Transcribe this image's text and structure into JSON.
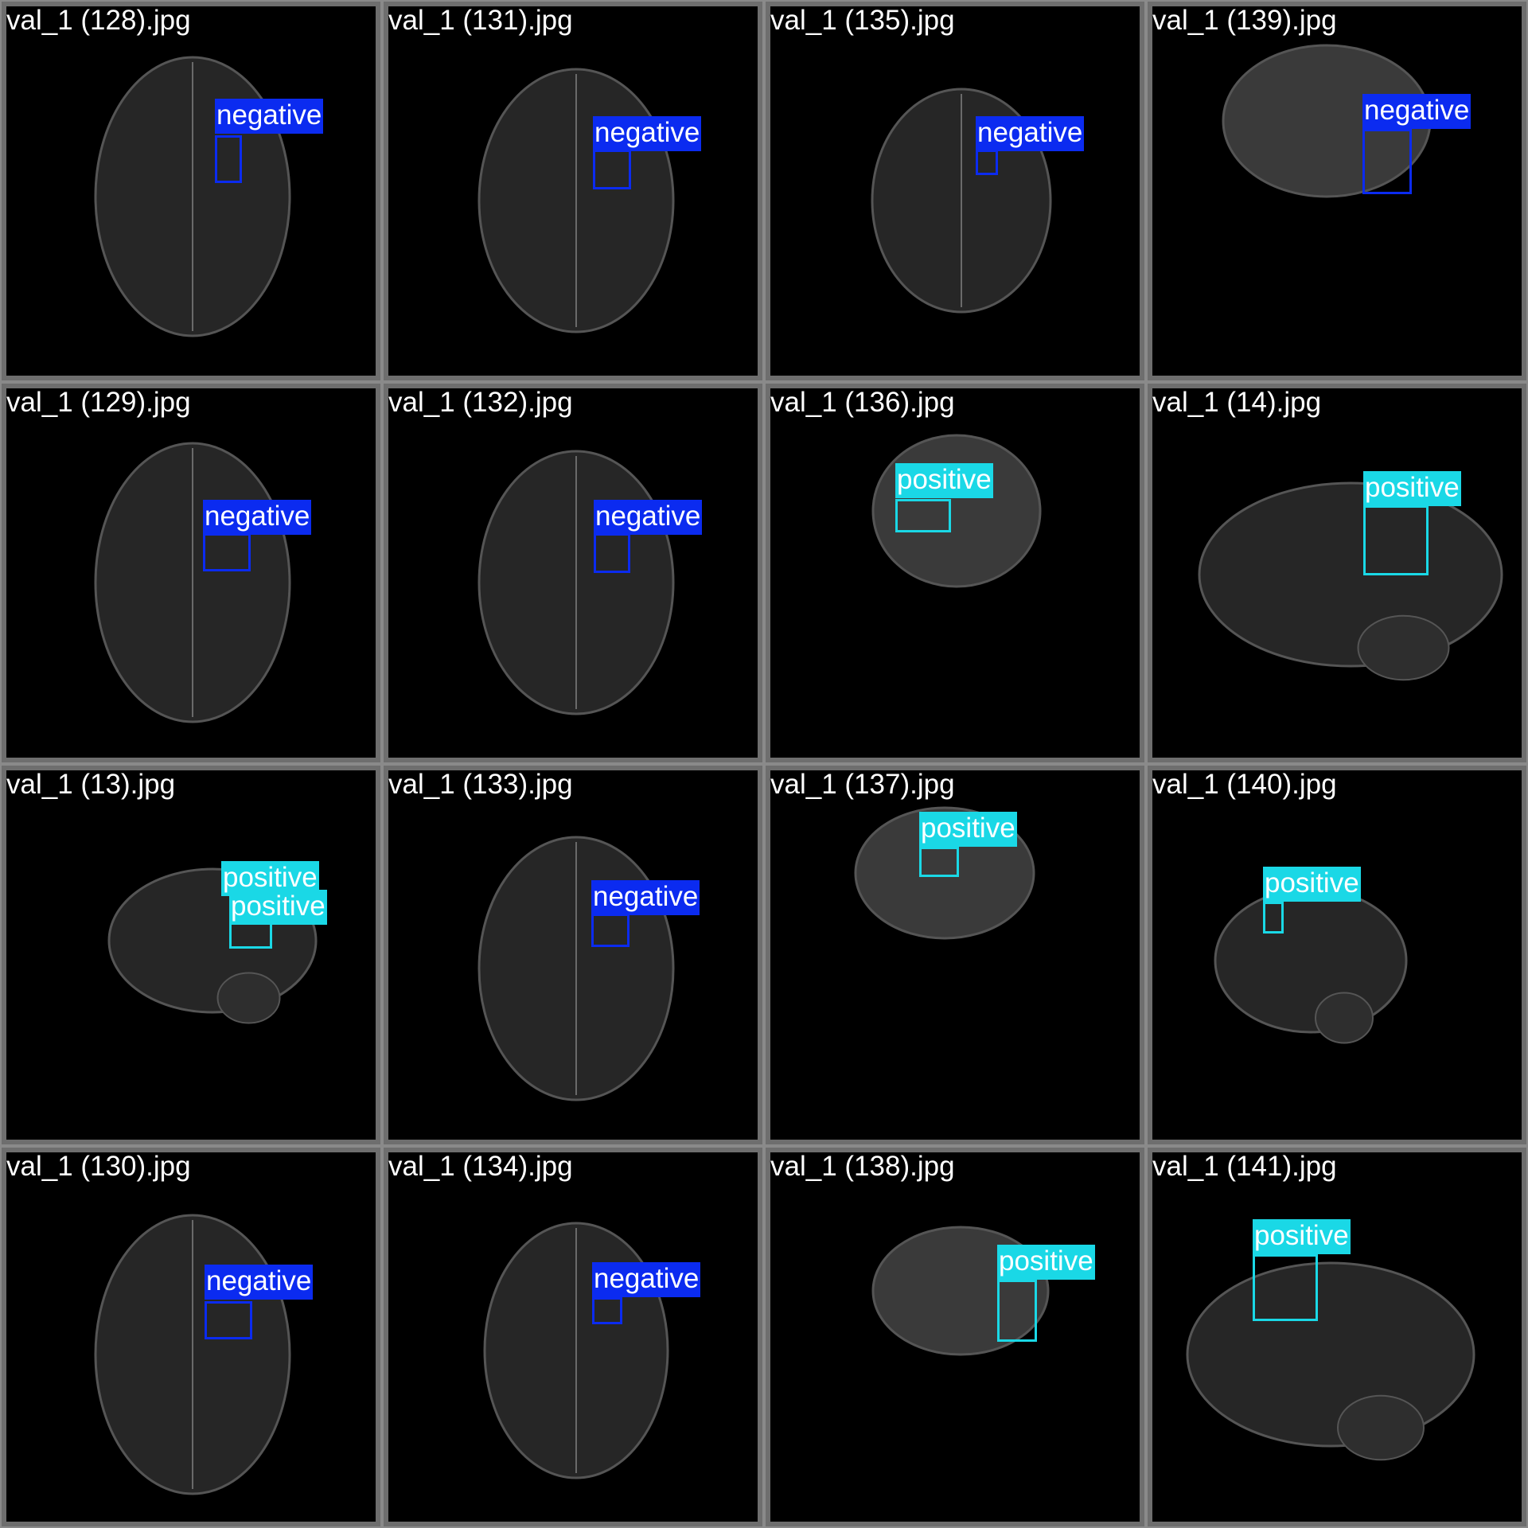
{
  "classes": {
    "negative": {
      "name": "negative",
      "color": "#0b2bf0"
    },
    "positive": {
      "name": "positive",
      "color": "#1ad8e6"
    }
  },
  "tiles": [
    {
      "filename": "val_1 (128).jpg",
      "view": "axial",
      "detections": [
        {
          "label": "negative"
        }
      ]
    },
    {
      "filename": "val_1 (131).jpg",
      "view": "axial",
      "detections": [
        {
          "label": "negative"
        }
      ]
    },
    {
      "filename": "val_1 (135).jpg",
      "view": "axial",
      "detections": [
        {
          "label": "negative"
        }
      ]
    },
    {
      "filename": "val_1 (139).jpg",
      "view": "coronal",
      "detections": [
        {
          "label": "negative"
        }
      ]
    },
    {
      "filename": "val_1 (129).jpg",
      "view": "axial",
      "detections": [
        {
          "label": "negative"
        }
      ]
    },
    {
      "filename": "val_1 (132).jpg",
      "view": "axial",
      "detections": [
        {
          "label": "negative"
        }
      ]
    },
    {
      "filename": "val_1 (136).jpg",
      "view": "coronal",
      "detections": [
        {
          "label": "positive"
        }
      ]
    },
    {
      "filename": "val_1 (14).jpg",
      "view": "sagittal",
      "detections": [
        {
          "label": "positive"
        }
      ]
    },
    {
      "filename": "val_1 (13).jpg",
      "view": "sagittal",
      "detections": [
        {
          "label": "positive"
        },
        {
          "label": "positive"
        }
      ]
    },
    {
      "filename": "val_1 (133).jpg",
      "view": "axial",
      "detections": [
        {
          "label": "negative"
        }
      ]
    },
    {
      "filename": "val_1 (137).jpg",
      "view": "coronal",
      "detections": [
        {
          "label": "positive"
        }
      ]
    },
    {
      "filename": "val_1 (140).jpg",
      "view": "sagittal",
      "detections": [
        {
          "label": "positive"
        }
      ]
    },
    {
      "filename": "val_1 (130).jpg",
      "view": "axial",
      "detections": [
        {
          "label": "negative"
        }
      ]
    },
    {
      "filename": "val_1 (134).jpg",
      "view": "axial",
      "detections": [
        {
          "label": "negative"
        }
      ]
    },
    {
      "filename": "val_1 (138).jpg",
      "view": "coronal",
      "detections": [
        {
          "label": "positive"
        }
      ]
    },
    {
      "filename": "val_1 (141).jpg",
      "view": "sagittal",
      "detections": [
        {
          "label": "positive"
        }
      ]
    }
  ]
}
